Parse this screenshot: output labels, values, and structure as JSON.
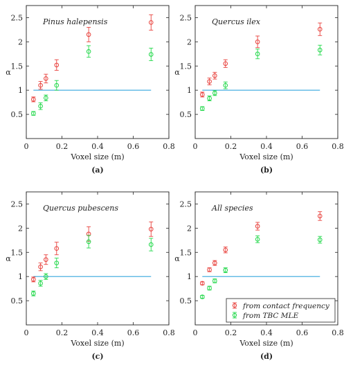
{
  "colors": {
    "red": "#e8413c",
    "green": "#22d84a",
    "reference": "#35a7dd",
    "axis": "#222222"
  },
  "chart_data": [
    {
      "type": "scatter",
      "panel": "(a)",
      "title": "Pinus halepensis",
      "xlabel": "Voxel size (m)",
      "ylabel": "α",
      "xlim": [
        0,
        0.8
      ],
      "ylim": [
        0,
        2.75
      ],
      "xticks": [
        "0",
        "0.2",
        "0.4",
        "0.6",
        "0.8"
      ],
      "yticks": [
        "0.5",
        "1",
        "1.5",
        "2",
        "2.5"
      ],
      "reference_line": {
        "y": 1,
        "x": [
          0.04,
          0.7
        ]
      },
      "series": [
        {
          "color": "red",
          "points": [
            {
              "x": 0.04,
              "y": 0.81,
              "err": 0.05
            },
            {
              "x": 0.08,
              "y": 1.1,
              "err": 0.08
            },
            {
              "x": 0.11,
              "y": 1.24,
              "err": 0.09
            },
            {
              "x": 0.17,
              "y": 1.52,
              "err": 0.11
            },
            {
              "x": 0.35,
              "y": 2.15,
              "err": 0.15
            },
            {
              "x": 0.7,
              "y": 2.4,
              "err": 0.16
            }
          ]
        },
        {
          "color": "green",
          "points": [
            {
              "x": 0.04,
              "y": 0.52,
              "err": 0.04
            },
            {
              "x": 0.08,
              "y": 0.67,
              "err": 0.07
            },
            {
              "x": 0.11,
              "y": 0.84,
              "err": 0.06
            },
            {
              "x": 0.17,
              "y": 1.1,
              "err": 0.1
            },
            {
              "x": 0.35,
              "y": 1.8,
              "err": 0.12
            },
            {
              "x": 0.7,
              "y": 1.74,
              "err": 0.13
            }
          ]
        }
      ]
    },
    {
      "type": "scatter",
      "panel": "(b)",
      "title": "Quercus ilex",
      "xlabel": "Voxel size (m)",
      "ylabel": "α",
      "xlim": [
        0,
        0.8
      ],
      "ylim": [
        0,
        2.75
      ],
      "xticks": [
        "0",
        "0.2",
        "0.4",
        "0.6",
        "0.8"
      ],
      "yticks": [
        "0.5",
        "1",
        "1.5",
        "2",
        "2.5"
      ],
      "reference_line": {
        "y": 1,
        "x": [
          0.04,
          0.7
        ]
      },
      "series": [
        {
          "color": "red",
          "points": [
            {
              "x": 0.04,
              "y": 0.91,
              "err": 0.05
            },
            {
              "x": 0.08,
              "y": 1.18,
              "err": 0.07
            },
            {
              "x": 0.11,
              "y": 1.3,
              "err": 0.07
            },
            {
              "x": 0.17,
              "y": 1.55,
              "err": 0.08
            },
            {
              "x": 0.35,
              "y": 2.0,
              "err": 0.12
            },
            {
              "x": 0.7,
              "y": 2.26,
              "err": 0.13
            }
          ]
        },
        {
          "color": "green",
          "points": [
            {
              "x": 0.04,
              "y": 0.62,
              "err": 0.04
            },
            {
              "x": 0.08,
              "y": 0.83,
              "err": 0.05
            },
            {
              "x": 0.11,
              "y": 0.94,
              "err": 0.05
            },
            {
              "x": 0.17,
              "y": 1.1,
              "err": 0.07
            },
            {
              "x": 0.35,
              "y": 1.75,
              "err": 0.1
            },
            {
              "x": 0.7,
              "y": 1.83,
              "err": 0.1
            }
          ]
        }
      ]
    },
    {
      "type": "scatter",
      "panel": "(c)",
      "title": "Quercus pubescens",
      "xlabel": "Voxel size (m)",
      "ylabel": "α",
      "xlim": [
        0,
        0.8
      ],
      "ylim": [
        0,
        2.75
      ],
      "xticks": [
        "0",
        "0.2",
        "0.4",
        "0.6",
        "0.8"
      ],
      "yticks": [
        "0.5",
        "1",
        "1.5",
        "2",
        "2.5"
      ],
      "reference_line": {
        "y": 1,
        "x": [
          0.04,
          0.7
        ]
      },
      "series": [
        {
          "color": "red",
          "points": [
            {
              "x": 0.04,
              "y": 0.94,
              "err": 0.05
            },
            {
              "x": 0.08,
              "y": 1.2,
              "err": 0.08
            },
            {
              "x": 0.11,
              "y": 1.35,
              "err": 0.1
            },
            {
              "x": 0.17,
              "y": 1.58,
              "err": 0.13
            },
            {
              "x": 0.35,
              "y": 1.88,
              "err": 0.15
            },
            {
              "x": 0.7,
              "y": 1.98,
              "err": 0.15
            }
          ]
        },
        {
          "color": "green",
          "points": [
            {
              "x": 0.04,
              "y": 0.65,
              "err": 0.05
            },
            {
              "x": 0.08,
              "y": 0.86,
              "err": 0.06
            },
            {
              "x": 0.11,
              "y": 1.0,
              "err": 0.06
            },
            {
              "x": 0.17,
              "y": 1.28,
              "err": 0.1
            },
            {
              "x": 0.35,
              "y": 1.72,
              "err": 0.13
            },
            {
              "x": 0.7,
              "y": 1.66,
              "err": 0.13
            }
          ]
        }
      ]
    },
    {
      "type": "scatter",
      "panel": "(d)",
      "title": "All species",
      "xlabel": "Voxel size (m)",
      "ylabel": "α",
      "xlim": [
        0,
        0.8
      ],
      "ylim": [
        0,
        2.75
      ],
      "xticks": [
        "0",
        "0.2",
        "0.4",
        "0.6",
        "0.8"
      ],
      "yticks": [
        "0.5",
        "1",
        "1.5",
        "2",
        "2.5"
      ],
      "reference_line": {
        "y": 1,
        "x": [
          0.04,
          0.7
        ]
      },
      "legend": {
        "placement": "bottom-right",
        "entries": [
          {
            "color": "red",
            "label": "from contact frequency"
          },
          {
            "color": "green",
            "label": "from TBC MLE"
          }
        ]
      },
      "series": [
        {
          "color": "red",
          "points": [
            {
              "x": 0.04,
              "y": 0.86,
              "err": 0.03
            },
            {
              "x": 0.08,
              "y": 1.14,
              "err": 0.04
            },
            {
              "x": 0.11,
              "y": 1.28,
              "err": 0.05
            },
            {
              "x": 0.17,
              "y": 1.55,
              "err": 0.06
            },
            {
              "x": 0.35,
              "y": 2.04,
              "err": 0.08
            },
            {
              "x": 0.7,
              "y": 2.25,
              "err": 0.09
            }
          ]
        },
        {
          "color": "green",
          "points": [
            {
              "x": 0.04,
              "y": 0.58,
              "err": 0.03
            },
            {
              "x": 0.08,
              "y": 0.76,
              "err": 0.04
            },
            {
              "x": 0.11,
              "y": 0.91,
              "err": 0.04
            },
            {
              "x": 0.17,
              "y": 1.13,
              "err": 0.05
            },
            {
              "x": 0.35,
              "y": 1.77,
              "err": 0.07
            },
            {
              "x": 0.7,
              "y": 1.76,
              "err": 0.07
            }
          ]
        }
      ]
    }
  ]
}
